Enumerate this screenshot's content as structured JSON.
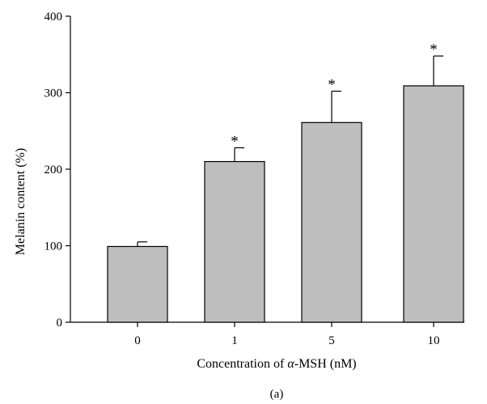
{
  "chart_data": {
    "type": "bar",
    "title": "",
    "xlabel_prefix": "Concentration of ",
    "xlabel_symbol": "α",
    "xlabel_suffix": "-MSH (nM)",
    "ylabel": "Melanin content (%)",
    "panel_label": "(a)",
    "categories": [
      "0",
      "1",
      "5",
      "10"
    ],
    "values": [
      99,
      210,
      261,
      309
    ],
    "errors": [
      6,
      18,
      41,
      39
    ],
    "significance": [
      "",
      "*",
      "*",
      "*"
    ],
    "ylim": [
      0,
      400
    ],
    "yticks": [
      0,
      100,
      200,
      300,
      400
    ],
    "bar_color": "#bebebe",
    "grid": false,
    "legend": "none"
  }
}
